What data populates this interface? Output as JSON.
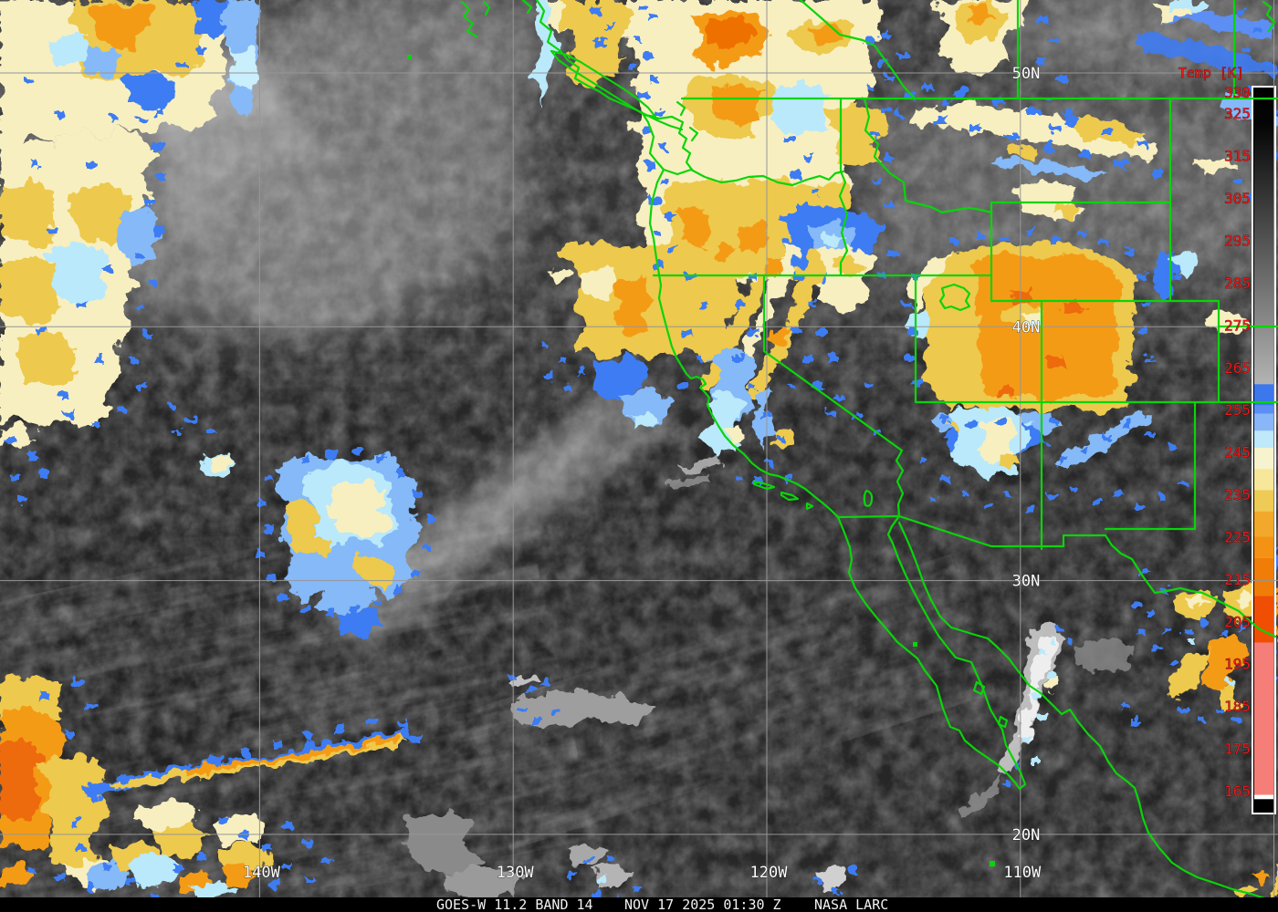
{
  "image_kind": "infrared satellite image with temperature enhancement",
  "caption": {
    "mission": "GOES-W 11.2 BAND 14",
    "timestamp": "NOV 17 2025 01:30 Z",
    "credit": "NASA LARC"
  },
  "grid": {
    "lat_labels": [
      {
        "label": "50N",
        "deg": 50
      },
      {
        "label": "40N",
        "deg": 40
      },
      {
        "label": "30N",
        "deg": 30
      },
      {
        "label": "20N",
        "deg": 20
      }
    ],
    "lon_labels": [
      {
        "label": "140W",
        "deg": -140
      },
      {
        "label": "130W",
        "deg": -130
      },
      {
        "label": "120W",
        "deg": -120
      },
      {
        "label": "110W",
        "deg": -110
      },
      {
        "label": "",
        "deg": -100
      }
    ]
  },
  "colorbar": {
    "title": "Temp [K]",
    "unit": "K",
    "tick_values": [
      330,
      325,
      315,
      305,
      295,
      285,
      275,
      265,
      255,
      245,
      235,
      225,
      215,
      205,
      195,
      185,
      175,
      165
    ],
    "scale_top_K": 331,
    "scale_bottom_K": 160,
    "warm_gradient_top": "#000000",
    "warm_gradient_bottom": "#b4b4b4",
    "segments": [
      {
        "t_from": 261,
        "t_to": 256,
        "color": "#3d77ee"
      },
      {
        "t_from": 256,
        "t_to": 254,
        "color": "#5c8ef3"
      },
      {
        "t_from": 254,
        "t_to": 250,
        "color": "#88b6f7"
      },
      {
        "t_from": 250,
        "t_to": 246,
        "color": "#bfe8fb"
      },
      {
        "t_from": 246,
        "t_to": 241,
        "color": "#f7f3cf"
      },
      {
        "t_from": 241,
        "t_to": 236,
        "color": "#f6e79b"
      },
      {
        "t_from": 236,
        "t_to": 231,
        "color": "#eecb55"
      },
      {
        "t_from": 231,
        "t_to": 225,
        "color": "#f2a92b"
      },
      {
        "t_from": 225,
        "t_to": 220,
        "color": "#f39214"
      },
      {
        "t_from": 220,
        "t_to": 211,
        "color": "#f07d07"
      },
      {
        "t_from": 211,
        "t_to": 200,
        "color": "#f04f03"
      },
      {
        "t_from": 200,
        "t_to": 164,
        "color": "#f57f78"
      },
      {
        "t_from": 164,
        "t_to": 163,
        "color": "#ffffff"
      },
      {
        "t_from": 163,
        "t_to": 160,
        "color": "#000000"
      }
    ]
  },
  "overlay_colors": {
    "boundary_green": "#0ad40a",
    "grid_gray": "#969696",
    "label_white": "#ffffff",
    "tick_red": "#e81c1c"
  }
}
